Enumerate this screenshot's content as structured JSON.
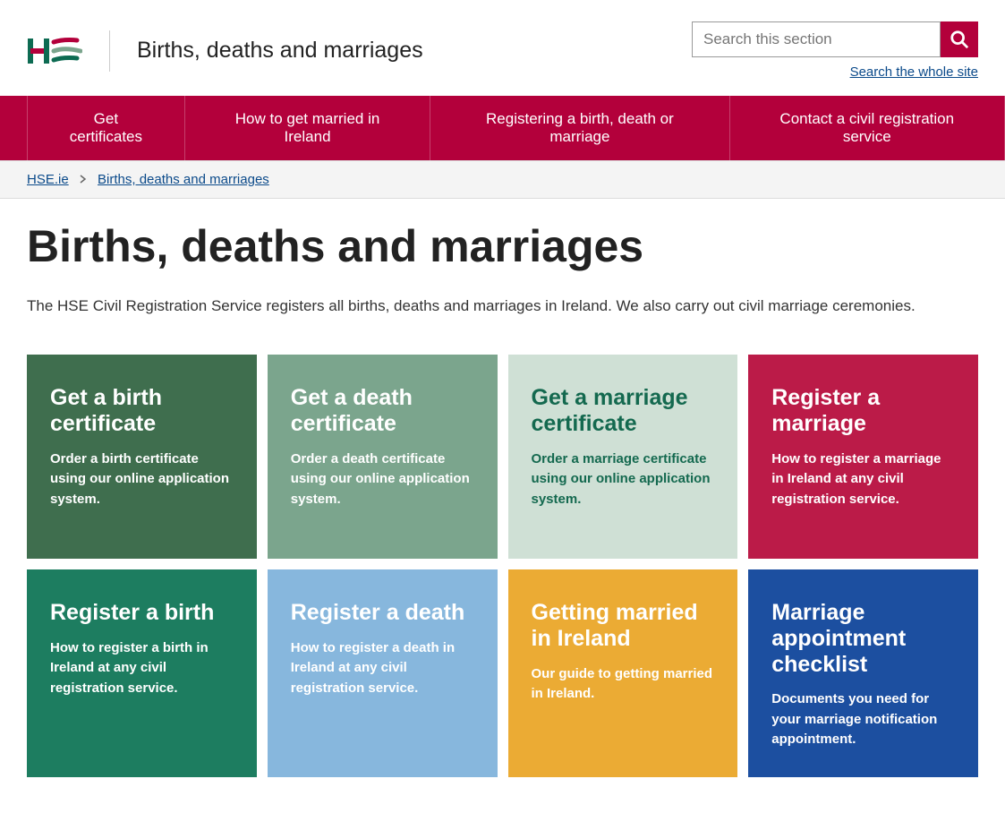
{
  "header": {
    "section_title": "Births, deaths and marriages",
    "search_placeholder": "Search this section",
    "search_whole_site": "Search the whole site"
  },
  "nav": {
    "items": [
      "Get certificates",
      "How to get married in Ireland",
      "Registering a birth, death or marriage",
      "Contact a civil registration service"
    ]
  },
  "breadcrumb": {
    "root": "HSE.ie",
    "current": "Births, deaths and marriages"
  },
  "main": {
    "title": "Births, deaths and marriages",
    "intro": "The HSE Civil Registration Service registers all births, deaths and marriages in Ireland. We also carry out civil marriage ceremonies."
  },
  "cards": [
    {
      "title": "Get a birth certificate",
      "desc": "Order a birth certificate using our online application system.",
      "bg": "#3f6e4e",
      "fg": "#ffffff"
    },
    {
      "title": "Get a death certificate",
      "desc": "Order a death certificate using our online application system.",
      "bg": "#7ba58d",
      "fg": "#ffffff"
    },
    {
      "title": "Get a marriage certificate",
      "desc": "Order a marriage certificate using our online application system.",
      "bg": "#cfe0d5",
      "fg": "#14694f"
    },
    {
      "title": "Register a marriage",
      "desc": "How to register a marriage in Ireland at any civil registration service.",
      "bg": "#bb1b48",
      "fg": "#ffffff"
    },
    {
      "title": "Register a birth",
      "desc": "How to register a birth in Ireland at any civil registration service.",
      "bg": "#1d7d60",
      "fg": "#ffffff"
    },
    {
      "title": "Register a death",
      "desc": "How to register a death in Ireland at any civil registration service.",
      "bg": "#87b7dd",
      "fg": "#ffffff"
    },
    {
      "title": "Getting married in Ireland",
      "desc": "Our guide to getting married in Ireland.",
      "bg": "#ebab34",
      "fg": "#ffffff"
    },
    {
      "title": "Marriage appointment checklist",
      "desc": "Documents you need for your marriage notification appointment.",
      "bg": "#1c4fa0",
      "fg": "#ffffff"
    }
  ]
}
